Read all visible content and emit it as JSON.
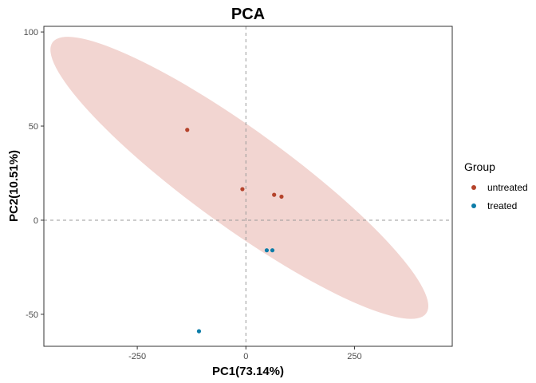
{
  "chart_data": {
    "type": "scatter",
    "title": "PCA",
    "xlabel": "PC1(73.14%)",
    "ylabel": "PC2(10.51%)",
    "xlim": [
      -465,
      475
    ],
    "ylim": [
      -67,
      103
    ],
    "xticks": [
      -250,
      0,
      250
    ],
    "yticks": [
      -50,
      0,
      50,
      100
    ],
    "xtick_labels": [
      "-250",
      "0",
      "250"
    ],
    "ytick_labels": [
      "-50",
      "0",
      "50",
      "100"
    ],
    "grid": false,
    "reference_lines": {
      "x": 0,
      "y": 0,
      "style": "dashed"
    },
    "legend": {
      "title": "Group",
      "position": "right"
    },
    "series": [
      {
        "name": "untreated",
        "color": "#B5432B",
        "points": [
          {
            "x": -135,
            "y": 48
          },
          {
            "x": -8,
            "y": 16.5
          },
          {
            "x": 65,
            "y": 13.5
          },
          {
            "x": 82,
            "y": 12.5
          }
        ]
      },
      {
        "name": "treated",
        "color": "#0C7CA8",
        "points": [
          {
            "x": 48,
            "y": -16
          },
          {
            "x": 61,
            "y": -16
          },
          {
            "x": -108,
            "y": -59
          }
        ]
      }
    ],
    "ellipse": {
      "group": "untreated",
      "color": "#F2D5D1",
      "center": {
        "x": -15,
        "y": 22.5
      },
      "major_endpoints": [
        {
          "x": -430,
          "y": 95
        },
        {
          "x": 430,
          "y": -49
        }
      ],
      "minor_half_extent_data_y": 8.4
    }
  }
}
